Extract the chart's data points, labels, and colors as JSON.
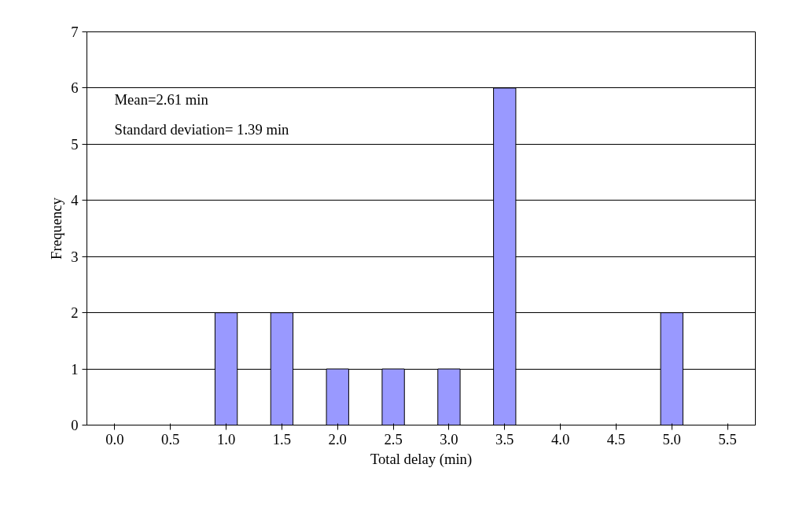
{
  "chart_data": {
    "type": "bar",
    "xlabel": "Total delay (min)",
    "ylabel": "Frequency",
    "categories": [
      "0.0",
      "0.5",
      "1.0",
      "1.5",
      "2.0",
      "2.5",
      "3.0",
      "3.5",
      "4.0",
      "4.5",
      "5.0",
      "5.5"
    ],
    "values": [
      0,
      0,
      2,
      2,
      1,
      1,
      1,
      6,
      0,
      0,
      2,
      0
    ],
    "color": "#9999ff",
    "ylim": [
      0,
      7
    ],
    "yticks": [
      0,
      1,
      2,
      3,
      4,
      5,
      6,
      7
    ],
    "grid": "y",
    "annotations": [
      "Mean=2.61 min",
      "Standard deviation= 1.39 min"
    ]
  }
}
